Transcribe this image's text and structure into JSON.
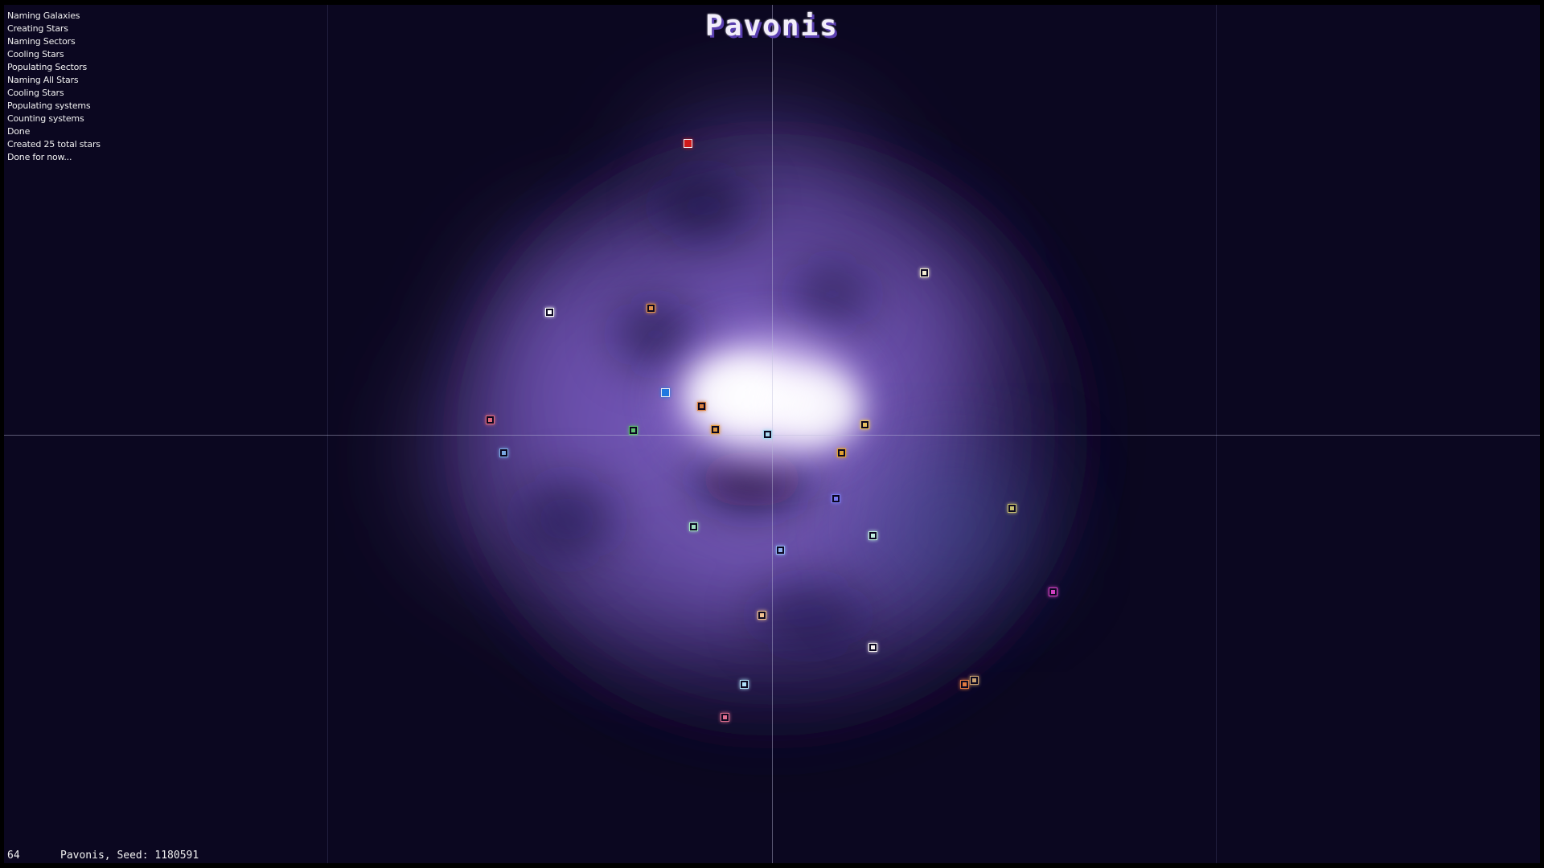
{
  "galaxy": {
    "title": "Pavonis"
  },
  "log": [
    "Naming Galaxies",
    "Creating Stars",
    "Naming Sectors",
    "Cooling Stars",
    "Populating Sectors",
    "Naming All Stars",
    "Cooling Stars",
    "Populating systems",
    "Counting systems",
    "Done",
    "Created 25 total stars",
    "Done for now..."
  ],
  "footer": {
    "fps": "64",
    "info": "Pavonis, Seed: 1180591"
  },
  "colors": {
    "background": "#0b0720",
    "nebula": "#8a6ad0",
    "core": "#ffffff"
  },
  "stars": [
    {
      "name": "star-red",
      "color": "#d11a1a",
      "solid": true
    },
    {
      "name": "star-cream-upper-right",
      "color": "#f2ecd0",
      "solid": false
    },
    {
      "name": "star-white-upper-left",
      "color": "#ffffff",
      "solid": false
    },
    {
      "name": "star-orange-upper",
      "color": "#e0904a",
      "solid": false
    },
    {
      "name": "star-blue",
      "color": "#1f78e0",
      "solid": true
    },
    {
      "name": "star-orange-center",
      "color": "#d98040",
      "solid": false
    },
    {
      "name": "star-pink-left",
      "color": "#e06a7a",
      "solid": false
    },
    {
      "name": "star-green-left",
      "color": "#60c070",
      "solid": false
    },
    {
      "name": "star-orange-core",
      "color": "#e09a40",
      "solid": false
    },
    {
      "name": "star-lightblue-core",
      "color": "#a8d8f0",
      "solid": false
    },
    {
      "name": "star-yellow-right",
      "color": "#e8c060",
      "solid": false
    },
    {
      "name": "star-blue-left",
      "color": "#7aa8e0",
      "solid": false
    },
    {
      "name": "star-amber-right",
      "color": "#e0a030",
      "solid": false
    },
    {
      "name": "star-violet",
      "color": "#7a7af0",
      "solid": false
    },
    {
      "name": "star-olive-far-right",
      "color": "#c8c070",
      "solid": false
    },
    {
      "name": "star-mint",
      "color": "#a0e0c0",
      "solid": false
    },
    {
      "name": "star-teal-right",
      "color": "#c0f0e0",
      "solid": false
    },
    {
      "name": "star-periwinkle",
      "color": "#90b0f0",
      "solid": false
    },
    {
      "name": "star-magenta",
      "color": "#d040c0",
      "solid": false
    },
    {
      "name": "star-peach",
      "color": "#f0c090",
      "solid": false
    },
    {
      "name": "star-white-lower",
      "color": "#f4f0f0",
      "solid": false
    },
    {
      "name": "star-orange-lower-a",
      "color": "#e07a40",
      "solid": false
    },
    {
      "name": "star-khaki-lower-b",
      "color": "#c8a070",
      "solid": false
    },
    {
      "name": "star-skyblue-lower",
      "color": "#b0e0f8",
      "solid": false
    },
    {
      "name": "star-rose-bottom",
      "color": "#e07090",
      "solid": false
    }
  ]
}
